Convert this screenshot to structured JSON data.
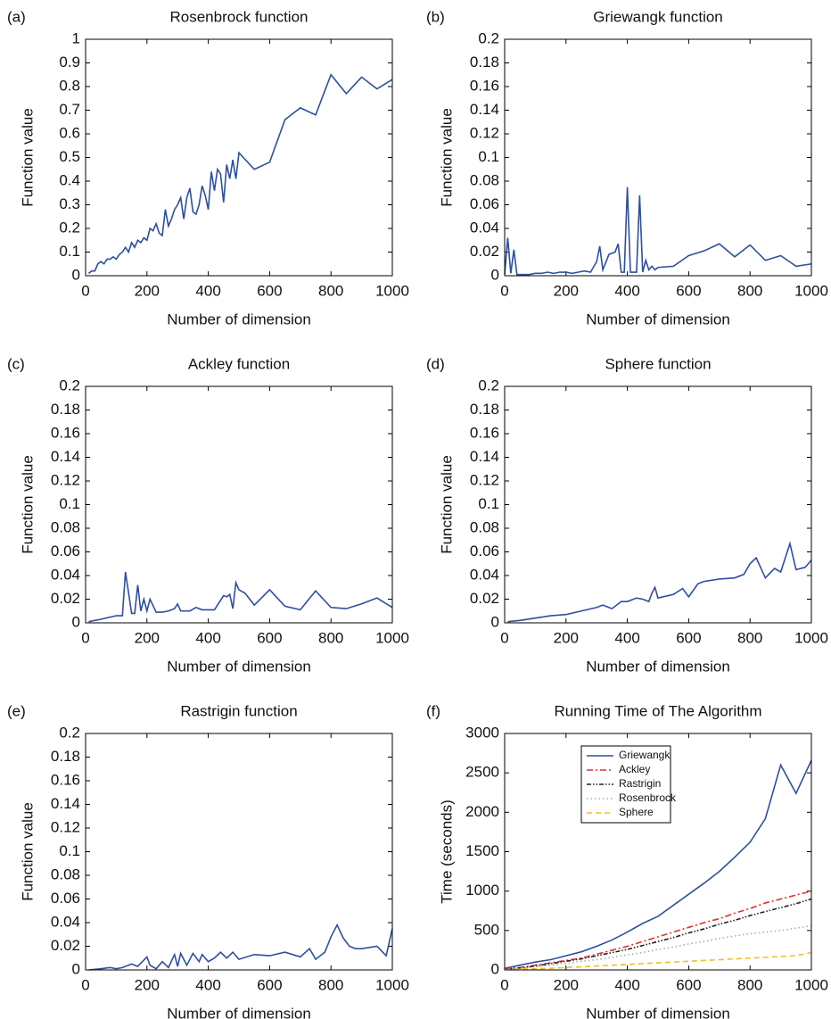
{
  "chart_data": [
    {
      "type": "line",
      "panel_label": "(a)",
      "title": "Rosenbrock function",
      "xlabel": "Number of dimension",
      "ylabel": "Function value",
      "x": [
        10,
        20,
        30,
        40,
        50,
        60,
        70,
        80,
        90,
        100,
        110,
        120,
        130,
        140,
        150,
        160,
        170,
        180,
        190,
        200,
        210,
        220,
        230,
        240,
        250,
        260,
        270,
        280,
        290,
        300,
        310,
        320,
        330,
        340,
        350,
        360,
        370,
        380,
        390,
        400,
        410,
        420,
        430,
        440,
        450,
        460,
        470,
        480,
        490,
        500,
        550,
        600,
        650,
        700,
        750,
        800,
        850,
        900,
        950,
        1000
      ],
      "series": [
        {
          "color": "#2e4f9f",
          "style": "solid",
          "values": [
            0.01,
            0.02,
            0.02,
            0.05,
            0.06,
            0.05,
            0.07,
            0.07,
            0.08,
            0.07,
            0.09,
            0.1,
            0.12,
            0.1,
            0.14,
            0.12,
            0.15,
            0.14,
            0.16,
            0.15,
            0.2,
            0.19,
            0.22,
            0.18,
            0.17,
            0.28,
            0.21,
            0.24,
            0.28,
            0.3,
            0.33,
            0.24,
            0.33,
            0.37,
            0.27,
            0.26,
            0.3,
            0.38,
            0.34,
            0.28,
            0.44,
            0.36,
            0.45,
            0.43,
            0.31,
            0.47,
            0.41,
            0.49,
            0.41,
            0.52,
            0.45,
            0.48,
            0.66,
            0.71,
            0.68,
            0.85,
            0.77,
            0.84,
            0.79,
            0.83
          ]
        }
      ],
      "xlim": [
        0,
        1000
      ],
      "xticks": [
        0,
        200,
        400,
        600,
        800,
        1000
      ],
      "ylim": [
        0,
        1
      ],
      "yticks": [
        0,
        0.1,
        0.2,
        0.3,
        0.4,
        0.5,
        0.6,
        0.7,
        0.8,
        0.9,
        1
      ]
    },
    {
      "type": "line",
      "panel_label": "(b)",
      "title": "Griewangk function",
      "xlabel": "Number of dimension",
      "ylabel": "Function value",
      "x": [
        0,
        10,
        20,
        30,
        40,
        60,
        80,
        100,
        120,
        140,
        160,
        180,
        200,
        220,
        240,
        260,
        280,
        300,
        310,
        320,
        340,
        360,
        370,
        380,
        390,
        400,
        410,
        420,
        430,
        440,
        450,
        460,
        470,
        480,
        490,
        500,
        550,
        600,
        650,
        700,
        750,
        800,
        850,
        900,
        950,
        1000
      ],
      "series": [
        {
          "color": "#2e4f9f",
          "style": "solid",
          "values": [
            0.001,
            0.032,
            0.002,
            0.022,
            0.001,
            0.001,
            0.001,
            0.002,
            0.002,
            0.003,
            0.002,
            0.003,
            0.003,
            0.002,
            0.003,
            0.004,
            0.003,
            0.012,
            0.025,
            0.005,
            0.018,
            0.02,
            0.027,
            0.003,
            0.003,
            0.075,
            0.003,
            0.003,
            0.003,
            0.068,
            0.003,
            0.013,
            0.005,
            0.008,
            0.005,
            0.007,
            0.008,
            0.017,
            0.021,
            0.027,
            0.016,
            0.026,
            0.013,
            0.017,
            0.008,
            0.01
          ]
        }
      ],
      "xlim": [
        0,
        1000
      ],
      "xticks": [
        0,
        200,
        400,
        600,
        800,
        1000
      ],
      "ylim": [
        0,
        0.2
      ],
      "yticks": [
        0,
        0.02,
        0.04,
        0.06,
        0.08,
        0.1,
        0.12,
        0.14,
        0.16,
        0.18,
        0.2
      ]
    },
    {
      "type": "line",
      "panel_label": "(c)",
      "title": "Ackley function",
      "xlabel": "Number of dimension",
      "ylabel": "Function value",
      "x": [
        10,
        50,
        100,
        120,
        130,
        150,
        160,
        170,
        180,
        190,
        200,
        210,
        230,
        250,
        270,
        290,
        300,
        310,
        320,
        340,
        360,
        380,
        400,
        420,
        450,
        460,
        470,
        480,
        490,
        500,
        520,
        550,
        600,
        650,
        700,
        750,
        800,
        850,
        900,
        950,
        1000
      ],
      "series": [
        {
          "color": "#2e4f9f",
          "style": "solid",
          "values": [
            0.001,
            0.003,
            0.006,
            0.006,
            0.043,
            0.008,
            0.008,
            0.032,
            0.01,
            0.02,
            0.01,
            0.02,
            0.009,
            0.009,
            0.01,
            0.012,
            0.016,
            0.01,
            0.01,
            0.01,
            0.013,
            0.011,
            0.011,
            0.011,
            0.023,
            0.022,
            0.024,
            0.012,
            0.034,
            0.028,
            0.025,
            0.015,
            0.028,
            0.014,
            0.011,
            0.027,
            0.013,
            0.012,
            0.016,
            0.021,
            0.013
          ]
        }
      ],
      "xlim": [
        0,
        1000
      ],
      "xticks": [
        0,
        200,
        400,
        600,
        800,
        1000
      ],
      "ylim": [
        0,
        0.2
      ],
      "yticks": [
        0,
        0.02,
        0.04,
        0.06,
        0.08,
        0.1,
        0.12,
        0.14,
        0.16,
        0.18,
        0.2
      ]
    },
    {
      "type": "line",
      "panel_label": "(d)",
      "title": "Sphere function",
      "xlabel": "Number of dimension",
      "ylabel": "Function value",
      "x": [
        10,
        50,
        100,
        150,
        200,
        250,
        300,
        320,
        350,
        380,
        400,
        430,
        450,
        470,
        480,
        490,
        500,
        550,
        580,
        600,
        630,
        650,
        700,
        750,
        780,
        800,
        820,
        850,
        880,
        900,
        930,
        950,
        980,
        1000
      ],
      "series": [
        {
          "color": "#2e4f9f",
          "style": "solid",
          "values": [
            0.001,
            0.002,
            0.004,
            0.006,
            0.007,
            0.01,
            0.013,
            0.015,
            0.012,
            0.018,
            0.018,
            0.021,
            0.02,
            0.018,
            0.025,
            0.03,
            0.021,
            0.024,
            0.029,
            0.022,
            0.033,
            0.035,
            0.037,
            0.038,
            0.041,
            0.05,
            0.055,
            0.038,
            0.046,
            0.043,
            0.067,
            0.045,
            0.047,
            0.053
          ]
        }
      ],
      "xlim": [
        0,
        1000
      ],
      "xticks": [
        0,
        200,
        400,
        600,
        800,
        1000
      ],
      "ylim": [
        0,
        0.2
      ],
      "yticks": [
        0,
        0.02,
        0.04,
        0.06,
        0.08,
        0.1,
        0.12,
        0.14,
        0.16,
        0.18,
        0.2
      ]
    },
    {
      "type": "line",
      "panel_label": "(e)",
      "title": "Rastrigin function",
      "xlabel": "Number of dimension",
      "ylabel": "Function value",
      "x": [
        10,
        50,
        80,
        100,
        120,
        150,
        170,
        200,
        210,
        230,
        250,
        270,
        290,
        300,
        310,
        330,
        350,
        370,
        380,
        400,
        420,
        440,
        460,
        480,
        500,
        550,
        600,
        650,
        700,
        730,
        750,
        780,
        800,
        820,
        840,
        860,
        880,
        900,
        950,
        980,
        1000
      ],
      "series": [
        {
          "color": "#2e4f9f",
          "style": "solid",
          "values": [
            0,
            0.001,
            0.002,
            0.001,
            0.002,
            0.005,
            0.003,
            0.011,
            0.004,
            0.001,
            0.007,
            0.002,
            0.013,
            0.003,
            0.014,
            0.004,
            0.014,
            0.007,
            0.013,
            0.007,
            0.01,
            0.015,
            0.01,
            0.015,
            0.009,
            0.013,
            0.012,
            0.015,
            0.011,
            0.018,
            0.009,
            0.015,
            0.028,
            0.038,
            0.027,
            0.02,
            0.018,
            0.018,
            0.02,
            0.012,
            0.035
          ]
        }
      ],
      "xlim": [
        0,
        1000
      ],
      "xticks": [
        0,
        200,
        400,
        600,
        800,
        1000
      ],
      "ylim": [
        0,
        0.2
      ],
      "yticks": [
        0,
        0.02,
        0.04,
        0.06,
        0.08,
        0.1,
        0.12,
        0.14,
        0.16,
        0.18,
        0.2
      ]
    },
    {
      "type": "line",
      "panel_label": "(f)",
      "title": "Running Time of The Algorithm",
      "xlabel": "Number of dimension",
      "ylabel": "Time (seconds)",
      "x": [
        0,
        50,
        100,
        150,
        200,
        250,
        300,
        350,
        400,
        450,
        500,
        550,
        600,
        650,
        700,
        750,
        800,
        850,
        900,
        950,
        1000
      ],
      "series": [
        {
          "name": "Griewangk",
          "color": "#2e4f9f",
          "style": "solid",
          "values": [
            20,
            60,
            100,
            130,
            180,
            230,
            300,
            380,
            480,
            590,
            680,
            820,
            960,
            1100,
            1250,
            1430,
            1620,
            1920,
            2600,
            2240,
            2660
          ]
        },
        {
          "name": "Ackley",
          "color": "#e0302a",
          "style": "dashdot",
          "values": [
            10,
            30,
            60,
            90,
            120,
            150,
            200,
            250,
            300,
            360,
            420,
            480,
            540,
            600,
            650,
            720,
            780,
            850,
            900,
            950,
            1000
          ]
        },
        {
          "name": "Rastrigin",
          "color": "#222222",
          "style": "dashdotdot",
          "values": [
            10,
            25,
            50,
            80,
            110,
            140,
            180,
            220,
            260,
            310,
            360,
            410,
            470,
            520,
            580,
            630,
            690,
            740,
            790,
            840,
            900
          ]
        },
        {
          "name": "Rosenbrock",
          "color": "#aaaaaa",
          "style": "dotted",
          "values": [
            5,
            20,
            40,
            60,
            80,
            110,
            130,
            160,
            190,
            220,
            260,
            290,
            330,
            360,
            400,
            430,
            460,
            480,
            500,
            530,
            560
          ]
        },
        {
          "name": "Sphere",
          "color": "#f0c020",
          "style": "dashed",
          "values": [
            5,
            10,
            15,
            20,
            30,
            40,
            50,
            60,
            70,
            80,
            90,
            100,
            110,
            120,
            130,
            140,
            150,
            160,
            170,
            180,
            220
          ]
        }
      ],
      "legend": "upper center",
      "xlim": [
        0,
        1000
      ],
      "xticks": [
        0,
        200,
        400,
        600,
        800,
        1000
      ],
      "ylim": [
        0,
        3000
      ],
      "yticks": [
        0,
        500,
        1000,
        1500,
        2000,
        2500,
        3000
      ]
    }
  ]
}
